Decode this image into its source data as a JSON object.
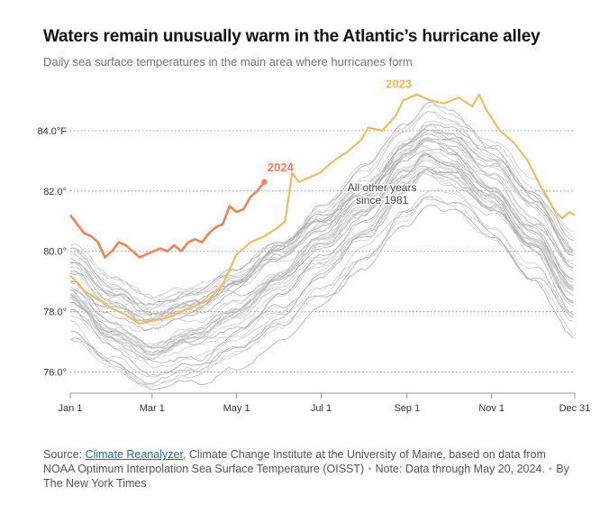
{
  "title": "Waters remain unusually warm in the Atlantic’s hurricane alley",
  "subtitle": "Daily sea surface temperatures in the main area where hurricanes form",
  "chart_data": {
    "type": "line",
    "xlabel": "",
    "ylabel": "",
    "x_range_day_of_year": [
      1,
      365
    ],
    "ylim": [
      75.6,
      85.4
    ],
    "y_ticks": [
      {
        "value": 76,
        "label": "76.0°"
      },
      {
        "value": 78,
        "label": "78.0°"
      },
      {
        "value": 80,
        "label": "80.0°"
      },
      {
        "value": 82,
        "label": "82.0°"
      },
      {
        "value": 84,
        "label": "84.0°F"
      }
    ],
    "x_ticks": [
      {
        "day": 1,
        "label": "Jan 1"
      },
      {
        "day": 60,
        "label": "Mar 1"
      },
      {
        "day": 121,
        "label": "May 1"
      },
      {
        "day": 182,
        "label": "Jul 1"
      },
      {
        "day": 244,
        "label": "Sep 1"
      },
      {
        "day": 305,
        "label": "Nov 1"
      },
      {
        "day": 365,
        "label": "Dec 31"
      }
    ],
    "grid": true,
    "series": [
      {
        "name": "2024",
        "label": "2024",
        "color": "#f0825a",
        "points": [
          [
            1,
            81.2
          ],
          [
            6,
            80.9
          ],
          [
            11,
            80.6
          ],
          [
            16,
            80.5
          ],
          [
            21,
            80.3
          ],
          [
            26,
            79.8
          ],
          [
            31,
            80.0
          ],
          [
            36,
            80.3
          ],
          [
            41,
            80.2
          ],
          [
            46,
            80.0
          ],
          [
            51,
            79.8
          ],
          [
            56,
            79.9
          ],
          [
            61,
            80.0
          ],
          [
            66,
            80.1
          ],
          [
            71,
            80.0
          ],
          [
            76,
            80.2
          ],
          [
            81,
            80.0
          ],
          [
            86,
            80.3
          ],
          [
            91,
            80.4
          ],
          [
            96,
            80.3
          ],
          [
            101,
            80.6
          ],
          [
            106,
            80.8
          ],
          [
            111,
            80.9
          ],
          [
            116,
            81.5
          ],
          [
            121,
            81.3
          ],
          [
            126,
            81.4
          ],
          [
            131,
            81.8
          ],
          [
            136,
            82.0
          ],
          [
            141,
            82.3
          ]
        ]
      },
      {
        "name": "2023",
        "label": "2023",
        "color": "#f2b857",
        "points": [
          [
            1,
            79.2
          ],
          [
            11,
            78.7
          ],
          [
            21,
            78.4
          ],
          [
            31,
            78.1
          ],
          [
            41,
            77.9
          ],
          [
            51,
            77.6
          ],
          [
            61,
            77.7
          ],
          [
            71,
            77.8
          ],
          [
            81,
            78.0
          ],
          [
            91,
            78.2
          ],
          [
            101,
            78.4
          ],
          [
            111,
            78.9
          ],
          [
            121,
            79.9
          ],
          [
            131,
            80.3
          ],
          [
            141,
            80.5
          ],
          [
            151,
            80.8
          ],
          [
            156,
            81.0
          ],
          [
            161,
            82.6
          ],
          [
            166,
            82.3
          ],
          [
            171,
            82.4
          ],
          [
            181,
            82.6
          ],
          [
            191,
            83.0
          ],
          [
            201,
            83.3
          ],
          [
            211,
            83.7
          ],
          [
            216,
            84.1
          ],
          [
            226,
            84.0
          ],
          [
            236,
            84.5
          ],
          [
            241,
            85.0
          ],
          [
            251,
            85.2
          ],
          [
            261,
            85.0
          ],
          [
            271,
            84.9
          ],
          [
            281,
            85.1
          ],
          [
            291,
            84.8
          ],
          [
            296,
            85.2
          ],
          [
            301,
            84.7
          ],
          [
            311,
            84.0
          ],
          [
            321,
            83.6
          ],
          [
            331,
            83.0
          ],
          [
            341,
            82.1
          ],
          [
            351,
            81.3
          ],
          [
            356,
            81.1
          ],
          [
            361,
            81.3
          ],
          [
            365,
            81.2
          ]
        ]
      }
    ],
    "other_years": {
      "label_line1": "All other years",
      "label_line2": "since 1981",
      "count": 42,
      "mean_profile": [
        [
          1,
          78.8
        ],
        [
          31,
          77.7
        ],
        [
          60,
          77.1
        ],
        [
          91,
          77.5
        ],
        [
          121,
          78.2
        ],
        [
          152,
          79.2
        ],
        [
          182,
          80.3
        ],
        [
          213,
          81.4
        ],
        [
          244,
          82.8
        ],
        [
          258,
          83.3
        ],
        [
          274,
          83.1
        ],
        [
          305,
          82.1
        ],
        [
          335,
          80.7
        ],
        [
          365,
          79.0
        ]
      ],
      "color": "#b5b5b5"
    },
    "annotation_note": "Note: Data through May 20, 2024."
  },
  "footer": {
    "source_prefix": "Source: ",
    "source_link": "Climate Reanalyzer",
    "source_rest": ", Climate Change Institute at the University of Maine, based on data from NOAA Optimum Interpolation Sea Surface Temperature (OISST)",
    "note": "Note: Data through May 20, 2024.",
    "byline": "By The New York Times"
  }
}
